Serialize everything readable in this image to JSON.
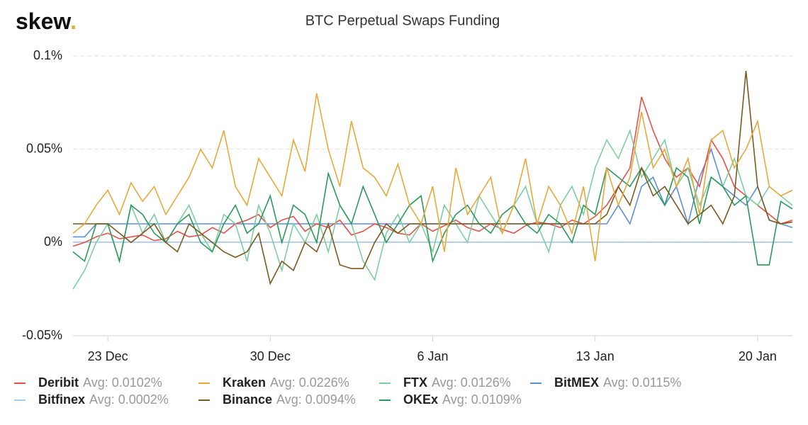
{
  "brand": {
    "name": "skew",
    "dot": "."
  },
  "chart_data": {
    "type": "line",
    "title": "BTC Perpetual Swaps Funding",
    "categories": [
      null,
      null,
      null,
      "23 Dec",
      null,
      null,
      null,
      null,
      null,
      null,
      null,
      null,
      null,
      null,
      null,
      null,
      null,
      "30 Dec",
      null,
      null,
      null,
      null,
      null,
      null,
      null,
      null,
      null,
      null,
      null,
      null,
      null,
      "6 Jan",
      null,
      null,
      null,
      null,
      null,
      null,
      null,
      null,
      null,
      null,
      null,
      null,
      null,
      "13 Jan",
      null,
      null,
      null,
      null,
      null,
      null,
      null,
      null,
      null,
      null,
      null,
      null,
      null,
      "20 Jan",
      null,
      null,
      null
    ],
    "ylim": [
      -0.05,
      0.1
    ],
    "yticks": [
      {
        "value": -0.05,
        "label": "-0.05%"
      },
      {
        "value": 0,
        "label": "0%"
      },
      {
        "value": 0.05,
        "label": "0.05%"
      },
      {
        "value": 0.1,
        "label": "0.1%"
      }
    ],
    "grid": true,
    "series": [
      {
        "name": "Deribit",
        "avg_label": "Avg: 0.0102%",
        "color": "#e8504a",
        "values": [
          -0.002,
          0.0,
          0.003,
          0.005,
          0.002,
          0.003,
          0.004,
          0.001,
          0.002,
          0.006,
          0.003,
          0.004,
          0.008,
          0.005,
          0.01,
          0.012,
          0.015,
          0.008,
          0.012,
          0.014,
          0.006,
          0.01,
          0.008,
          0.012,
          0.004,
          0.006,
          0.01,
          0.008,
          0.005,
          0.004,
          0.01,
          0.006,
          0.009,
          0.012,
          0.008,
          0.006,
          0.01,
          0.007,
          0.005,
          0.009,
          0.011,
          0.01,
          0.008,
          0.012,
          0.01,
          0.014,
          0.02,
          0.03,
          0.04,
          0.078,
          0.06,
          0.045,
          0.035,
          0.04,
          0.03,
          0.055,
          0.045,
          0.03,
          0.025,
          0.02,
          0.015,
          0.01,
          0.012
        ]
      },
      {
        "name": "Kraken",
        "avg_label": "Avg: 0.0226%",
        "color": "#e9a93a",
        "values": [
          0.005,
          0.01,
          0.02,
          0.028,
          0.015,
          0.032,
          0.022,
          0.03,
          0.015,
          0.025,
          0.035,
          0.05,
          0.04,
          0.06,
          0.03,
          0.02,
          0.045,
          0.035,
          0.025,
          0.055,
          0.038,
          0.08,
          0.05,
          0.03,
          0.065,
          0.04,
          0.035,
          0.025,
          0.042,
          0.02,
          0.01,
          0.03,
          -0.005,
          0.04,
          0.015,
          0.025,
          0.035,
          0.005,
          0.02,
          0.045,
          0.01,
          0.03,
          0.02,
          0.005,
          0.03,
          -0.01,
          0.04,
          0.02,
          0.035,
          0.07,
          0.04,
          0.05,
          0.03,
          0.045,
          0.015,
          0.055,
          0.06,
          0.04,
          0.05,
          0.065,
          0.03,
          0.025,
          0.028
        ]
      },
      {
        "name": "FTX",
        "avg_label": "Avg: 0.0126%",
        "color": "#7dcfa0",
        "values": [
          -0.025,
          -0.015,
          0.0,
          0.01,
          -0.01,
          0.02,
          0.005,
          0.015,
          0.0,
          0.01,
          0.02,
          0.005,
          -0.005,
          0.015,
          0.01,
          -0.01,
          0.02,
          0.005,
          -0.015,
          0.01,
          0.0,
          0.015,
          -0.005,
          0.02,
          0.01,
          -0.01,
          -0.02,
          0.005,
          0.015,
          0.0,
          0.01,
          -0.005,
          0.02,
          0.01,
          0.0,
          0.025,
          0.015,
          0.005,
          0.02,
          0.03,
          0.01,
          -0.005,
          0.02,
          0.03,
          0.015,
          0.04,
          0.055,
          0.045,
          0.06,
          0.035,
          0.045,
          0.055,
          0.03,
          0.04,
          0.02,
          0.035,
          0.03,
          0.045,
          0.025,
          0.02,
          0.03,
          0.025,
          0.02
        ]
      },
      {
        "name": "BitMEX",
        "avg_label": "Avg: 0.0115%",
        "color": "#5b8fd9",
        "values": [
          0.003,
          0.003,
          0.01,
          0.01,
          0.01,
          0.01,
          0.01,
          0.01,
          0.01,
          0.01,
          0.01,
          0.01,
          0.01,
          0.01,
          0.01,
          0.01,
          0.01,
          0.01,
          0.01,
          0.01,
          0.01,
          0.01,
          0.01,
          0.01,
          0.01,
          0.01,
          0.01,
          0.01,
          0.01,
          0.01,
          0.01,
          0.01,
          0.01,
          0.01,
          0.01,
          0.01,
          0.01,
          0.01,
          0.01,
          0.01,
          0.01,
          0.01,
          0.01,
          0.01,
          0.01,
          0.01,
          0.01,
          0.02,
          0.01,
          0.03,
          0.035,
          0.02,
          0.03,
          0.01,
          0.035,
          0.05,
          0.03,
          0.025,
          0.02,
          0.03,
          0.012,
          0.01,
          0.008
        ]
      },
      {
        "name": "Bitfinex",
        "avg_label": "Avg: 0.0002%",
        "color": "#a8c8f0",
        "values": [
          0.0002,
          0.0002,
          0.0002,
          0.0002,
          0.0002,
          0.0002,
          0.0002,
          0.0002,
          0.0002,
          0.0002,
          0.0002,
          0.0002,
          0.0002,
          0.0002,
          0.0002,
          0.0002,
          0.0002,
          0.0002,
          0.0002,
          0.0002,
          0.0002,
          0.0002,
          0.0002,
          0.0002,
          0.0002,
          0.0002,
          0.0002,
          0.0002,
          0.0002,
          0.0002,
          0.0002,
          0.0002,
          0.0002,
          0.0002,
          0.0002,
          0.0002,
          0.0002,
          0.0002,
          0.0002,
          0.0002,
          0.0002,
          0.0002,
          0.0002,
          0.0002,
          0.0002,
          0.0002,
          0.0002,
          0.0002,
          0.0002,
          0.0002,
          0.0002,
          0.0002,
          0.0002,
          0.0002,
          0.0002,
          0.0002,
          0.0002,
          0.0002,
          0.0002,
          0.0002,
          0.0002,
          0.0002,
          0.0002
        ]
      },
      {
        "name": "Binance",
        "avg_label": "Avg: 0.0094%",
        "color": "#7a5a1e",
        "values": [
          0.01,
          0.01,
          0.01,
          0.01,
          0.005,
          0.0,
          0.005,
          0.01,
          0.0,
          -0.005,
          0.01,
          0.005,
          0.0,
          -0.005,
          -0.008,
          -0.005,
          0.005,
          -0.022,
          -0.01,
          -0.015,
          0.0,
          -0.005,
          0.01,
          -0.012,
          -0.014,
          -0.014,
          0.0,
          0.01,
          0.005,
          0.01,
          0.01,
          0.01,
          0.01,
          0.01,
          0.01,
          0.01,
          0.01,
          0.01,
          0.01,
          0.01,
          0.01,
          0.01,
          0.01,
          0.01,
          0.01,
          0.01,
          0.015,
          0.03,
          0.02,
          0.04,
          0.025,
          0.03,
          0.02,
          0.01,
          0.015,
          0.02,
          0.01,
          0.025,
          0.092,
          0.03,
          0.012,
          0.01,
          0.011
        ]
      },
      {
        "name": "OKEx",
        "avg_label": "Avg: 0.0109%",
        "color": "#2a9a5a",
        "values": [
          -0.005,
          -0.01,
          0.01,
          0.01,
          -0.01,
          0.02,
          0.015,
          0.005,
          0.0,
          0.01,
          0.015,
          0.0,
          -0.005,
          0.01,
          0.02,
          0.005,
          0.01,
          0.025,
          0.0,
          0.02,
          0.015,
          0.0,
          0.037,
          0.02,
          0.01,
          0.03,
          0.015,
          0.0,
          0.01,
          0.02,
          0.025,
          -0.01,
          0.005,
          0.015,
          0.02,
          0.01,
          0.005,
          0.015,
          0.02,
          0.01,
          0.005,
          0.015,
          0.01,
          0.0,
          0.02,
          0.015,
          0.04,
          0.035,
          0.03,
          0.04,
          0.03,
          0.02,
          0.04,
          0.035,
          0.01,
          0.035,
          0.03,
          0.02,
          0.025,
          -0.012,
          -0.012,
          0.022,
          0.018
        ]
      }
    ]
  }
}
